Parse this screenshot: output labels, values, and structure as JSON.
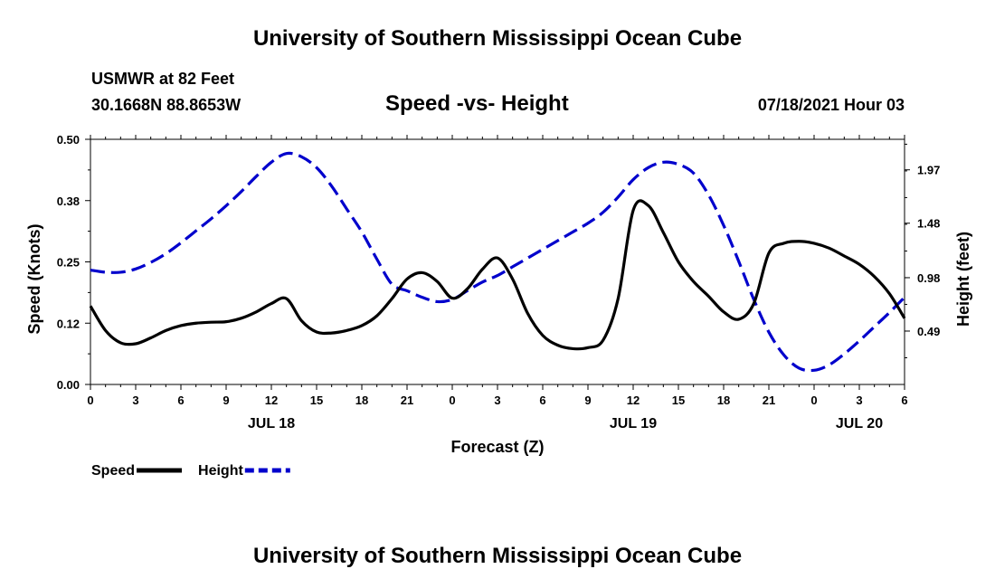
{
  "page": {
    "header_title": "University of Southern Mississippi Ocean Cube",
    "footer_title": "University of Southern Mississippi Ocean Cube",
    "station": "USMWR at 82 Feet",
    "coords": "30.1668N  88.8653W",
    "plot_title": "Speed -vs- Height",
    "timestamp": "07/18/2021 Hour 03"
  },
  "chart_data": {
    "type": "line",
    "title": "Speed -vs- Height",
    "xlabel": "Forecast (Z)",
    "ylabel_left": "Speed (Knots)",
    "ylabel_right": "Height (feet)",
    "x_unit": "forecast hours since 0Z JUL 18",
    "xlim": [
      0,
      54
    ],
    "ylim_left": [
      0,
      0.5
    ],
    "ylim_right": [
      0,
      2.25
    ],
    "x_ticks": [
      {
        "x": 0,
        "label": "0"
      },
      {
        "x": 3,
        "label": "3"
      },
      {
        "x": 6,
        "label": "6"
      },
      {
        "x": 9,
        "label": "9"
      },
      {
        "x": 12,
        "label": "12"
      },
      {
        "x": 15,
        "label": "15"
      },
      {
        "x": 18,
        "label": "18"
      },
      {
        "x": 21,
        "label": "21"
      },
      {
        "x": 24,
        "label": "0"
      },
      {
        "x": 27,
        "label": "3"
      },
      {
        "x": 30,
        "label": "6"
      },
      {
        "x": 33,
        "label": "9"
      },
      {
        "x": 36,
        "label": "12"
      },
      {
        "x": 39,
        "label": "15"
      },
      {
        "x": 42,
        "label": "18"
      },
      {
        "x": 45,
        "label": "21"
      },
      {
        "x": 48,
        "label": "0"
      },
      {
        "x": 51,
        "label": "3"
      },
      {
        "x": 54,
        "label": "6"
      }
    ],
    "date_labels": [
      {
        "x": 12,
        "label": "JUL 18"
      },
      {
        "x": 36,
        "label": "JUL 19"
      },
      {
        "x": 51,
        "label": "JUL 20"
      }
    ],
    "left_ticks": [
      {
        "v": 0.0,
        "label": "0.00"
      },
      {
        "v": 0.125,
        "label": "0.12"
      },
      {
        "v": 0.25,
        "label": "0.25"
      },
      {
        "v": 0.375,
        "label": "0.38"
      },
      {
        "v": 0.5,
        "label": "0.50"
      }
    ],
    "right_ticks": [
      {
        "v": 0.49,
        "label": "0.49"
      },
      {
        "v": 0.98,
        "label": "0.98"
      },
      {
        "v": 1.48,
        "label": "1.48"
      },
      {
        "v": 1.97,
        "label": "1.97"
      }
    ],
    "series": [
      {
        "name": "Speed",
        "axis": "left",
        "color": "#000000",
        "dash": "solid",
        "x": [
          0,
          1,
          2,
          3,
          4,
          5,
          6,
          7,
          8,
          9,
          10,
          11,
          12,
          13,
          14,
          15,
          16,
          17,
          18,
          19,
          20,
          21,
          22,
          23,
          24,
          25,
          26,
          27,
          28,
          29,
          30,
          31,
          32,
          33,
          34,
          35,
          36,
          37,
          38,
          39,
          40,
          41,
          42,
          43,
          44,
          45,
          46,
          47,
          48,
          49,
          50,
          51,
          52,
          53,
          54
        ],
        "y": [
          0.16,
          0.11,
          0.085,
          0.083,
          0.095,
          0.11,
          0.12,
          0.125,
          0.127,
          0.128,
          0.135,
          0.148,
          0.165,
          0.175,
          0.13,
          0.107,
          0.105,
          0.11,
          0.12,
          0.14,
          0.175,
          0.215,
          0.228,
          0.21,
          0.176,
          0.195,
          0.235,
          0.258,
          0.215,
          0.145,
          0.1,
          0.08,
          0.073,
          0.075,
          0.09,
          0.175,
          0.355,
          0.365,
          0.31,
          0.25,
          0.21,
          0.18,
          0.148,
          0.133,
          0.165,
          0.268,
          0.288,
          0.292,
          0.288,
          0.278,
          0.262,
          0.245,
          0.22,
          0.185,
          0.135
        ]
      },
      {
        "name": "Height",
        "axis": "right",
        "color": "#0000cc",
        "dash": "dashed",
        "x": [
          0,
          1,
          2,
          3,
          4,
          5,
          6,
          7,
          8,
          9,
          10,
          11,
          12,
          13,
          14,
          15,
          16,
          17,
          18,
          19,
          20,
          21,
          22,
          23,
          24,
          25,
          26,
          27,
          28,
          29,
          30,
          31,
          32,
          33,
          34,
          35,
          36,
          37,
          38,
          39,
          40,
          41,
          42,
          43,
          44,
          45,
          46,
          47,
          48,
          49,
          50,
          51,
          52,
          53,
          54
        ],
        "y": [
          1.05,
          1.03,
          1.03,
          1.06,
          1.12,
          1.2,
          1.3,
          1.41,
          1.52,
          1.64,
          1.77,
          1.91,
          2.04,
          2.12,
          2.09,
          1.99,
          1.82,
          1.61,
          1.4,
          1.15,
          0.92,
          0.86,
          0.8,
          0.76,
          0.78,
          0.86,
          0.94,
          1.0,
          1.08,
          1.16,
          1.24,
          1.32,
          1.4,
          1.48,
          1.58,
          1.72,
          1.88,
          1.99,
          2.04,
          2.02,
          1.94,
          1.74,
          1.46,
          1.13,
          0.78,
          0.48,
          0.27,
          0.15,
          0.13,
          0.18,
          0.28,
          0.4,
          0.53,
          0.66,
          0.8
        ]
      }
    ]
  }
}
